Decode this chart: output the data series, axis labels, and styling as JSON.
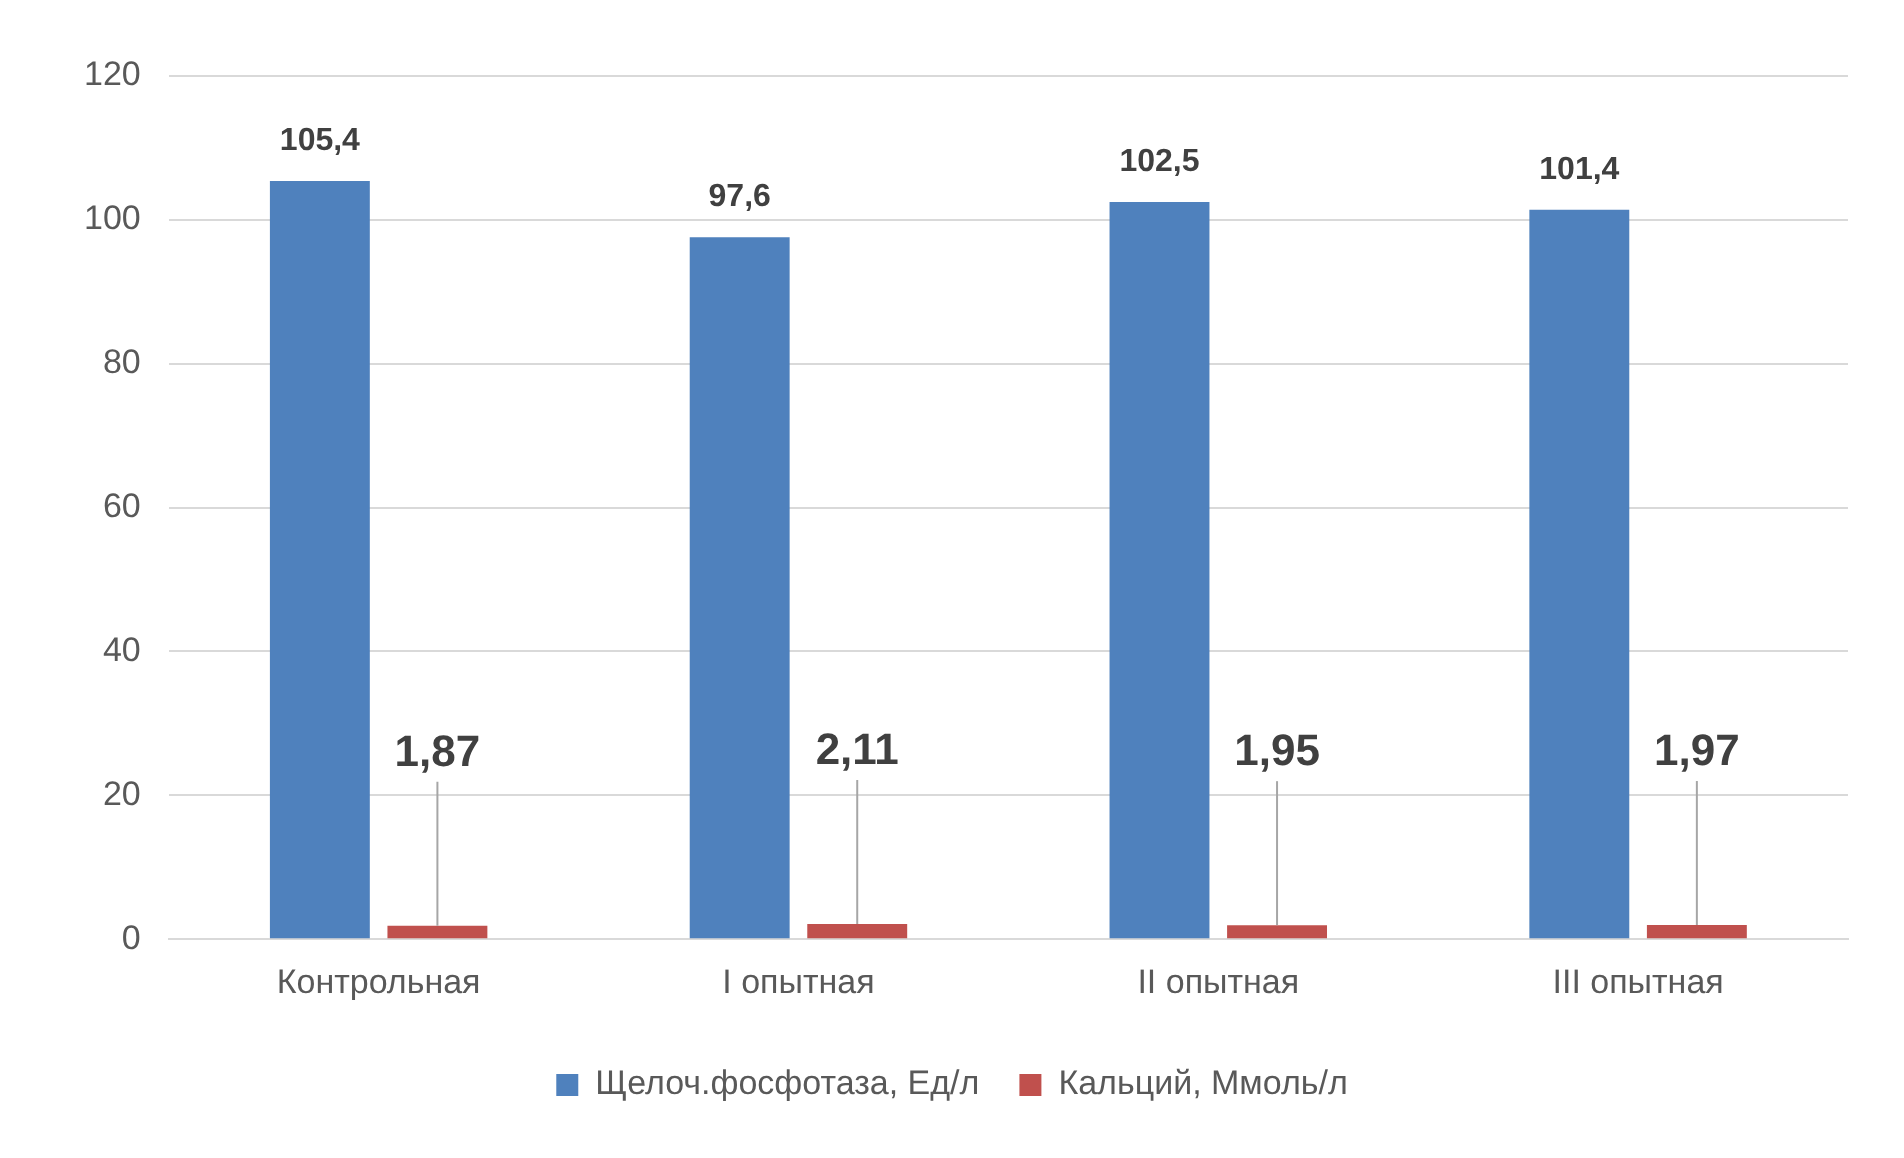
{
  "chart_data": {
    "type": "bar",
    "categories": [
      "Контрольная",
      "I опытная",
      "II опытная",
      "III опытная"
    ],
    "series": [
      {
        "name": "Щелоч.фосфотаза, Ед/л",
        "color": "#4f81bd",
        "values": [
          105.4,
          97.6,
          102.5,
          101.4
        ],
        "value_labels": [
          "105,4",
          "97,6",
          "102,5",
          "101,4"
        ]
      },
      {
        "name": "Кальций, Ммоль/л",
        "color": "#c0504d",
        "values": [
          1.87,
          2.11,
          1.95,
          1.97
        ],
        "value_labels": [
          "1,87",
          "2,11",
          "1,95",
          "1,97"
        ]
      }
    ],
    "ylim": [
      0,
      120
    ],
    "yticks": [
      0,
      20,
      40,
      60,
      80,
      100,
      120
    ],
    "grid": "y",
    "legend": "bottom"
  }
}
